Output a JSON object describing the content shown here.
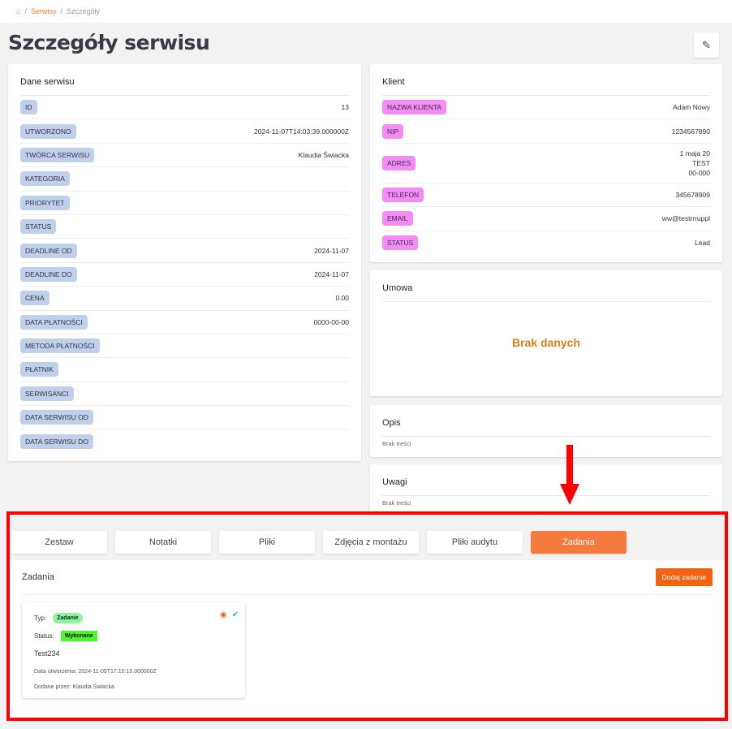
{
  "breadcrumb": {
    "home_icon": "home-icon",
    "items": [
      "Serwisy",
      "Szczegóły"
    ]
  },
  "page_title": "Szczegóły serwisu",
  "edit_icon": "pencil-icon",
  "dane": {
    "title": "Dane serwisu",
    "rows": [
      {
        "label": "ID",
        "value": "13"
      },
      {
        "label": "UTWORZONO",
        "value": "2024-11-07T14:03:39.000000Z"
      },
      {
        "label": "TWÓRCA SERWISU",
        "value": "Klaudia Świacka"
      },
      {
        "label": "KATEGORIA",
        "value": ""
      },
      {
        "label": "PRIORYTET",
        "value": ""
      },
      {
        "label": "STATUS",
        "value": ""
      },
      {
        "label": "DEADLINE OD",
        "value": "2024-11-07"
      },
      {
        "label": "DEADLINE DO",
        "value": "2024-11-07"
      },
      {
        "label": "CENA",
        "value": "0.00"
      },
      {
        "label": "DATA PŁATNOŚCI",
        "value": "0000-00-00"
      },
      {
        "label": "METODA PŁATNOŚCI",
        "value": ""
      },
      {
        "label": "PŁATNIK",
        "value": ""
      },
      {
        "label": "SERWISANCI",
        "value": ""
      },
      {
        "label": "DATA SERWISU OD",
        "value": ""
      },
      {
        "label": "DATA SERWISU DO",
        "value": ""
      }
    ]
  },
  "klient": {
    "title": "Klient",
    "rows": [
      {
        "label": "NAZWA KLIENTA",
        "value": "Adam Nowy"
      },
      {
        "label": "NIP",
        "value": "1234567890"
      },
      {
        "label": "ADRES",
        "value": "1 maja 20",
        "value2": "TEST",
        "value3": "00-000"
      },
      {
        "label": "TELEFON",
        "value": "345678909"
      },
      {
        "label": "EMAIL",
        "value": "ww@testrrruppl"
      },
      {
        "label": "STATUS",
        "value": "Lead"
      }
    ]
  },
  "umowa": {
    "title": "Umowa",
    "empty": "Brak danych"
  },
  "opis": {
    "title": "Opis",
    "text": "Brak treści"
  },
  "uwagi": {
    "title": "Uwagi",
    "text": "Brak treści"
  },
  "tabs": [
    "Zestaw",
    "Notatki",
    "Pliki",
    "Zdjęcia z montażu",
    "Pliki audytu",
    "Zadania"
  ],
  "active_tab": "Zadania",
  "zadania": {
    "title": "Zadania",
    "add_button": "Dodaj zadanie",
    "task": {
      "type_label": "Typ:",
      "type": "Zadanie",
      "status_label": "Status:",
      "status": "Wykonane",
      "name": "Test234",
      "created": "Data utworzenia: 2024-11-05T17:10:10.000000Z",
      "added_by": "Dodane przez: Klaudia Świacka"
    }
  },
  "colors": {
    "accent": "#f47a3e",
    "highlight": "#ff0000"
  }
}
